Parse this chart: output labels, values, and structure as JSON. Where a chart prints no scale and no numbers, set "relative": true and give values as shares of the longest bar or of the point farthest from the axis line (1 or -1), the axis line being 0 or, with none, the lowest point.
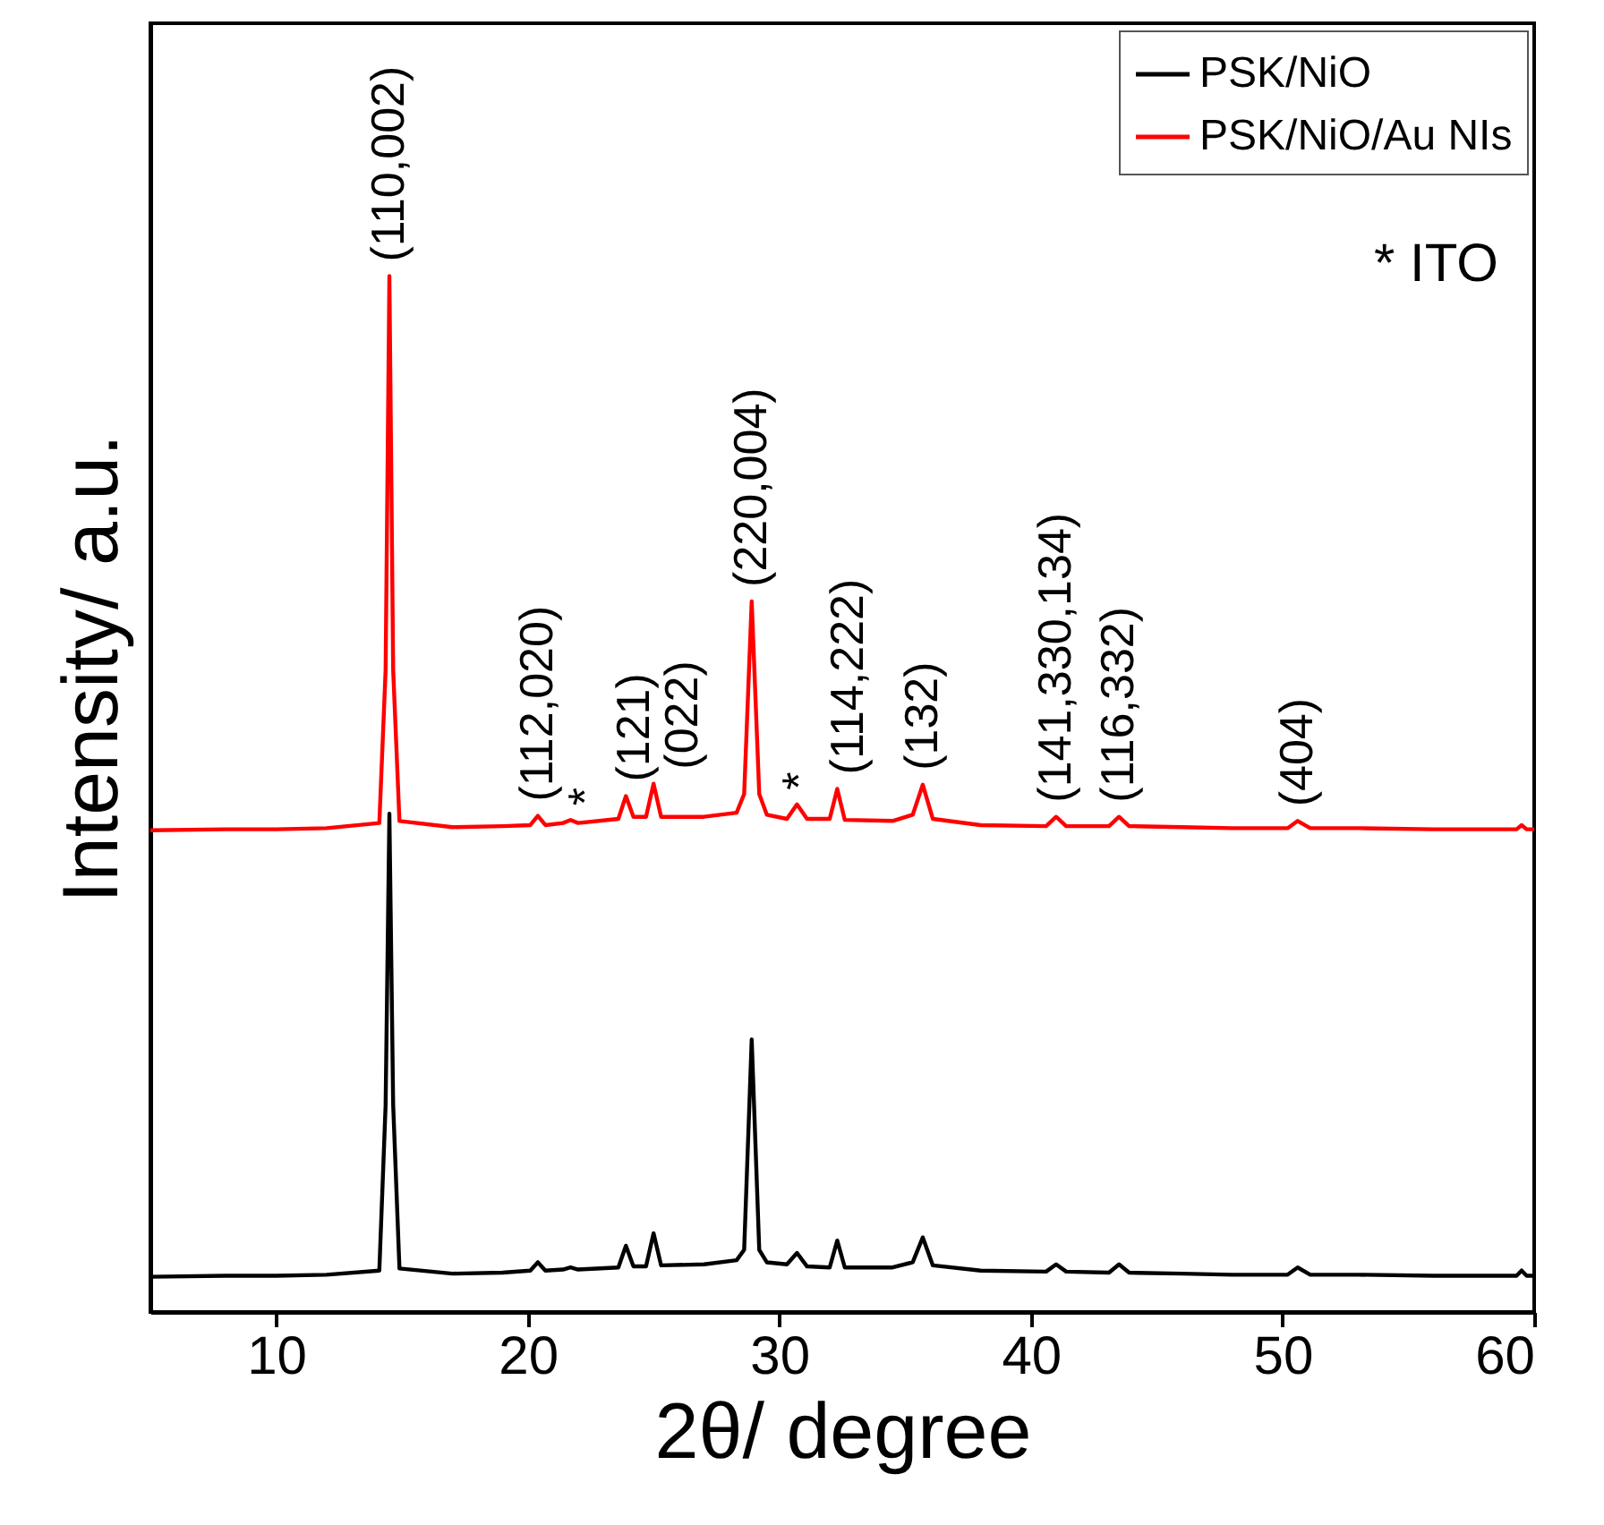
{
  "chart_data": {
    "type": "line",
    "relative": true,
    "xlabel": "2θ/ degree",
    "ylabel": "Intensity/ a.u.",
    "xlim": [
      5,
      60
    ],
    "xticks": [
      10,
      20,
      30,
      40,
      50,
      60
    ],
    "legend": "top right",
    "grid": false,
    "marker": "none",
    "line_style": "solid",
    "x": [
      5,
      8,
      10,
      12,
      14.1,
      14.35,
      14.5,
      14.65,
      14.9,
      17,
      19,
      20.1,
      20.4,
      20.7,
      21.4,
      21.7,
      22.0,
      23.6,
      23.9,
      24.2,
      24.7,
      25,
      25.3,
      27,
      28.3,
      28.6,
      28.9,
      29.2,
      29.5,
      30.3,
      30.7,
      31.1,
      32.0,
      32.3,
      32.6,
      34.5,
      35.3,
      35.7,
      36.1,
      38,
      40.6,
      41,
      41.4,
      43.1,
      43.5,
      43.9,
      46,
      48,
      50.2,
      50.6,
      51.1,
      53,
      56,
      59.3,
      59.5,
      59.7,
      60
    ],
    "series": [
      {
        "name": "PSK/NiO",
        "color": "#000000",
        "values": [
          0.034,
          0.035,
          0.035,
          0.036,
          0.04,
          0.2,
          0.481,
          0.2,
          0.042,
          0.037,
          0.038,
          0.04,
          0.048,
          0.04,
          0.041,
          0.043,
          0.041,
          0.043,
          0.064,
          0.044,
          0.044,
          0.076,
          0.045,
          0.046,
          0.05,
          0.06,
          0.263,
          0.06,
          0.048,
          0.046,
          0.057,
          0.044,
          0.043,
          0.069,
          0.043,
          0.043,
          0.048,
          0.072,
          0.045,
          0.04,
          0.039,
          0.046,
          0.039,
          0.038,
          0.046,
          0.038,
          0.037,
          0.036,
          0.036,
          0.043,
          0.036,
          0.036,
          0.035,
          0.035,
          0.04,
          0.035,
          0.035
        ]
      },
      {
        "name": "PSK/NiO/Au NIs",
        "color": "#ff0000",
        "values": [
          0.465,
          0.466,
          0.466,
          0.467,
          0.472,
          0.62,
          1,
          0.62,
          0.474,
          0.468,
          0.469,
          0.47,
          0.479,
          0.47,
          0.472,
          0.475,
          0.472,
          0.476,
          0.498,
          0.478,
          0.478,
          0.51,
          0.478,
          0.478,
          0.482,
          0.5,
          0.686,
          0.5,
          0.48,
          0.476,
          0.49,
          0.476,
          0.476,
          0.505,
          0.475,
          0.474,
          0.48,
          0.509,
          0.476,
          0.47,
          0.469,
          0.478,
          0.469,
          0.469,
          0.478,
          0.469,
          0.468,
          0.467,
          0.467,
          0.474,
          0.467,
          0.467,
          0.466,
          0.466,
          0.47,
          0.466,
          0.466
        ]
      }
    ],
    "annotations": [
      {
        "text": "(110,002)",
        "x": 14.5,
        "y": 1
      },
      {
        "text": "(112,020)",
        "x": 20.4,
        "y": 0.479
      },
      {
        "text": "*",
        "x": 21.7,
        "y": 0.475
      },
      {
        "text": "(121)",
        "x": 23.9,
        "y": 0.498
      },
      {
        "text": "(022)",
        "x": 25,
        "y": 0.51
      },
      {
        "text": "(220,004)",
        "x": 28.9,
        "y": 0.686
      },
      {
        "text": "*",
        "x": 30.7,
        "y": 0.49
      },
      {
        "text": "(114,222)",
        "x": 32.3,
        "y": 0.505
      },
      {
        "text": "(132)",
        "x": 35.7,
        "y": 0.509
      },
      {
        "text": "(141,330,134)",
        "x": 41,
        "y": 0.478
      },
      {
        "text": "(116,332)",
        "x": 43.5,
        "y": 0.478
      },
      {
        "text": "(404)",
        "x": 50.6,
        "y": 0.474
      },
      "* ITO"
    ]
  }
}
